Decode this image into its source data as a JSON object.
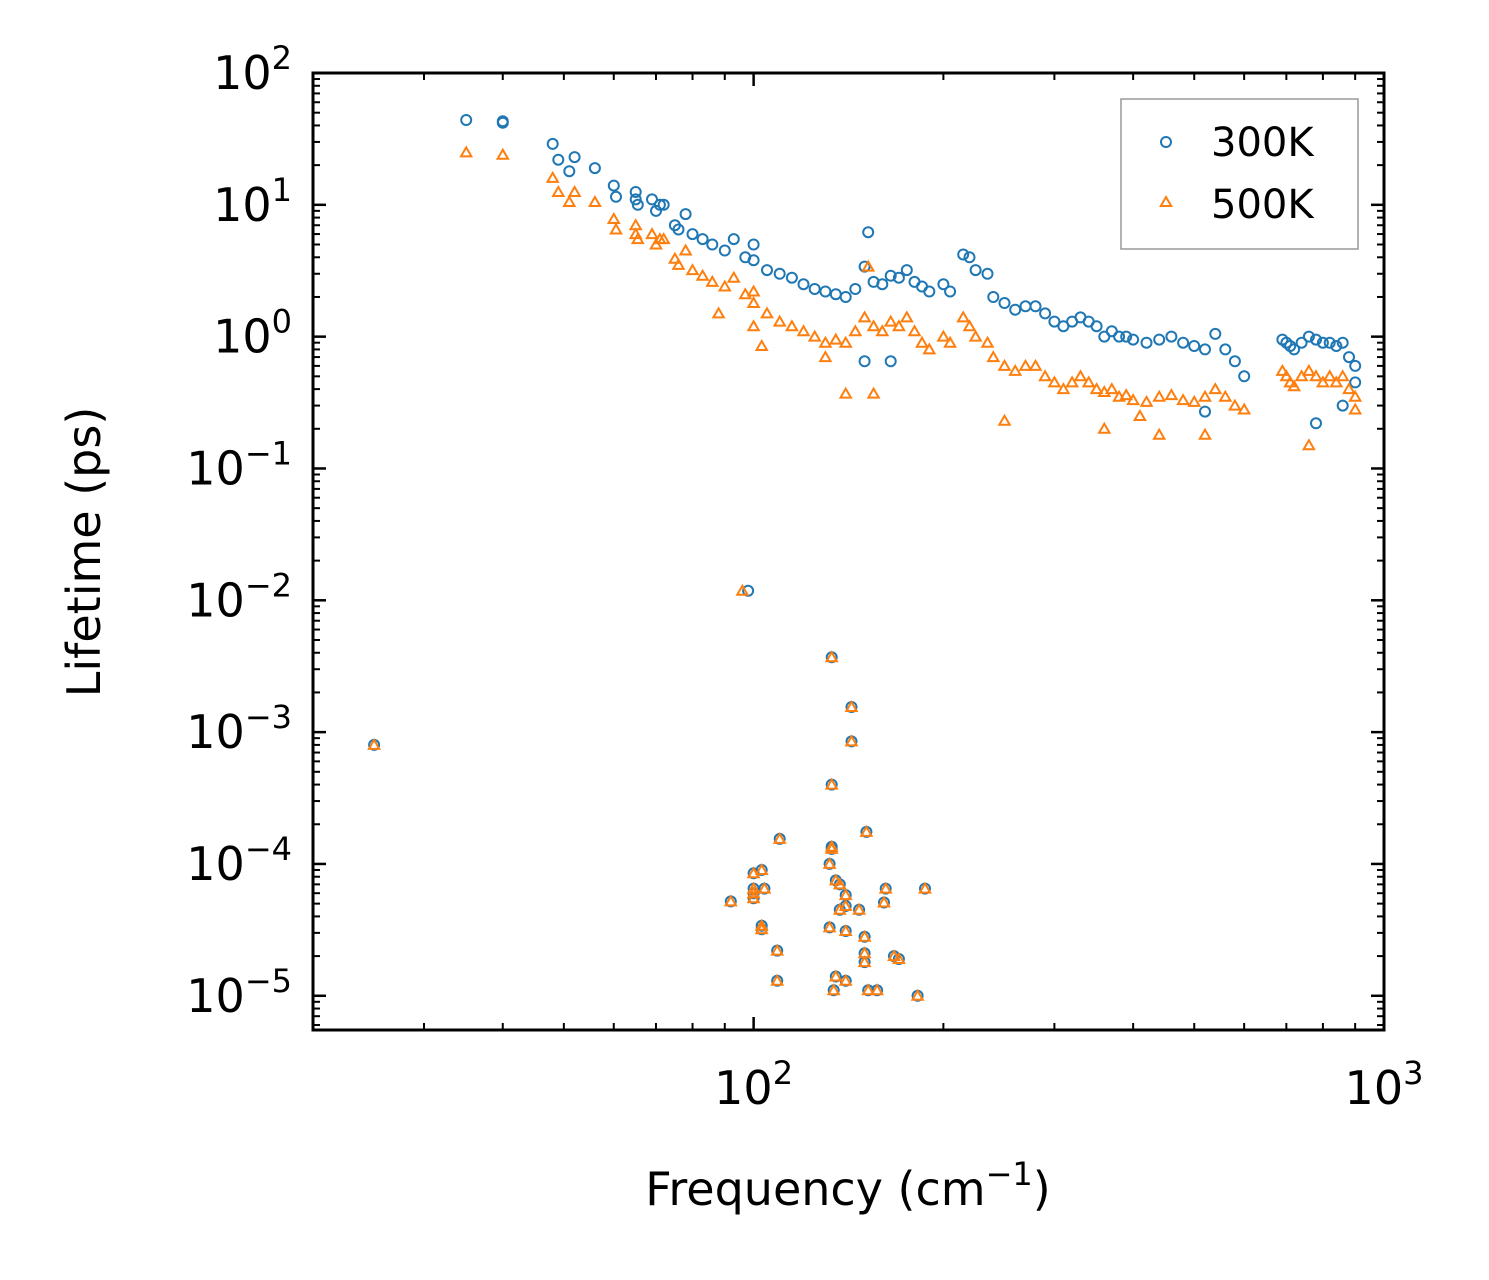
{
  "chart_data": {
    "type": "scatter",
    "xscale": "log",
    "yscale": "log",
    "xlim": [
      20,
      1000
    ],
    "ylim": [
      5.5e-06,
      100
    ],
    "xlabel": "Frequency (cm",
    "xlabel_sup": "−1",
    "xlabel_end": ")",
    "ylabel": "Lifetime (ps)",
    "legend_position": "top-right",
    "x_ticks": [
      {
        "value": 100,
        "base": "10",
        "exp": "2"
      },
      {
        "value": 1000,
        "base": "10",
        "exp": "3"
      }
    ],
    "y_ticks": [
      {
        "value": 100,
        "base": "10",
        "exp": "2"
      },
      {
        "value": 10,
        "base": "10",
        "exp": "1"
      },
      {
        "value": 1,
        "base": "10",
        "exp": "0"
      },
      {
        "value": 0.1,
        "base": "10",
        "exp": "−1"
      },
      {
        "value": 0.01,
        "base": "10",
        "exp": "−2"
      },
      {
        "value": 0.001,
        "base": "10",
        "exp": "−3"
      },
      {
        "value": 0.0001,
        "base": "10",
        "exp": "−4"
      },
      {
        "value": 1e-05,
        "base": "10",
        "exp": "−5"
      }
    ],
    "series": [
      {
        "name": "300K",
        "marker": "circle",
        "color": "#1f77b4",
        "points": [
          [
            35,
            44
          ],
          [
            40,
            43
          ],
          [
            40,
            42
          ],
          [
            48,
            29
          ],
          [
            49,
            22
          ],
          [
            51,
            18
          ],
          [
            52,
            23
          ],
          [
            56,
            19
          ],
          [
            60,
            14
          ],
          [
            60.5,
            11.5
          ],
          [
            65,
            12.5
          ],
          [
            65,
            11
          ],
          [
            65.5,
            10
          ],
          [
            69,
            11
          ],
          [
            70,
            9
          ],
          [
            71,
            10
          ],
          [
            72,
            10
          ],
          [
            75,
            7
          ],
          [
            76,
            6.5
          ],
          [
            78,
            8.5
          ],
          [
            80,
            6
          ],
          [
            83,
            5.5
          ],
          [
            86,
            5
          ],
          [
            90,
            4.5
          ],
          [
            93,
            5.5
          ],
          [
            97,
            4
          ],
          [
            100,
            5
          ],
          [
            100,
            3.8
          ],
          [
            105,
            3.2
          ],
          [
            110,
            3
          ],
          [
            115,
            2.8
          ],
          [
            120,
            2.5
          ],
          [
            125,
            2.3
          ],
          [
            130,
            2.2
          ],
          [
            135,
            2.1
          ],
          [
            140,
            2.0
          ],
          [
            145,
            2.3
          ],
          [
            150,
            3.4
          ],
          [
            152,
            6.2
          ],
          [
            155,
            2.6
          ],
          [
            160,
            2.5
          ],
          [
            165,
            2.9
          ],
          [
            170,
            2.8
          ],
          [
            175,
            3.2
          ],
          [
            180,
            2.6
          ],
          [
            185,
            2.4
          ],
          [
            190,
            2.2
          ],
          [
            200,
            2.5
          ],
          [
            205,
            2.2
          ],
          [
            215,
            4.2
          ],
          [
            220,
            4.0
          ],
          [
            225,
            3.2
          ],
          [
            235,
            3.0
          ],
          [
            240,
            2.0
          ],
          [
            250,
            1.8
          ],
          [
            260,
            1.6
          ],
          [
            270,
            1.7
          ],
          [
            280,
            1.7
          ],
          [
            290,
            1.5
          ],
          [
            300,
            1.3
          ],
          [
            310,
            1.2
          ],
          [
            320,
            1.3
          ],
          [
            330,
            1.4
          ],
          [
            340,
            1.3
          ],
          [
            350,
            1.2
          ],
          [
            360,
            1.0
          ],
          [
            370,
            1.1
          ],
          [
            380,
            1.0
          ],
          [
            390,
            1.0
          ],
          [
            400,
            0.95
          ],
          [
            420,
            0.9
          ],
          [
            440,
            0.95
          ],
          [
            460,
            1.0
          ],
          [
            480,
            0.9
          ],
          [
            500,
            0.85
          ],
          [
            520,
            0.8
          ],
          [
            540,
            1.05
          ],
          [
            560,
            0.8
          ],
          [
            580,
            0.65
          ],
          [
            600,
            0.5
          ],
          [
            520,
            0.27
          ],
          [
            690,
            0.95
          ],
          [
            700,
            0.9
          ],
          [
            710,
            0.85
          ],
          [
            720,
            0.8
          ],
          [
            740,
            0.9
          ],
          [
            760,
            1.0
          ],
          [
            780,
            0.95
          ],
          [
            800,
            0.9
          ],
          [
            820,
            0.9
          ],
          [
            840,
            0.85
          ],
          [
            860,
            0.9
          ],
          [
            880,
            0.7
          ],
          [
            900,
            0.6
          ],
          [
            900,
            0.45
          ],
          [
            860,
            0.3
          ],
          [
            780,
            0.22
          ],
          [
            150,
            0.65
          ],
          [
            165,
            0.65
          ],
          [
            98,
            0.0118
          ],
          [
            25,
            0.0008
          ],
          [
            133,
            0.0037
          ],
          [
            143,
            0.00155
          ],
          [
            143,
            0.00085
          ],
          [
            133,
            0.0004
          ],
          [
            110,
            0.000155
          ],
          [
            151,
            0.000175
          ],
          [
            133,
            0.000135
          ],
          [
            133,
            0.00013
          ],
          [
            132,
            0.0001
          ],
          [
            103,
            9e-05
          ],
          [
            100,
            8.5e-05
          ],
          [
            135,
            7.5e-05
          ],
          [
            137,
            7e-05
          ],
          [
            100,
            6.5e-05
          ],
          [
            100,
            6e-05
          ],
          [
            104,
            6.5e-05
          ],
          [
            162,
            6.5e-05
          ],
          [
            187,
            6.5e-05
          ],
          [
            140,
            5.8e-05
          ],
          [
            92,
            5.2e-05
          ],
          [
            100,
            5.5e-05
          ],
          [
            161,
            5.1e-05
          ],
          [
            137,
            4.5e-05
          ],
          [
            140,
            4.8e-05
          ],
          [
            147,
            4.5e-05
          ],
          [
            103,
            3.4e-05
          ],
          [
            103,
            3.2e-05
          ],
          [
            132,
            3.3e-05
          ],
          [
            140,
            3.1e-05
          ],
          [
            150,
            2.8e-05
          ],
          [
            109,
            2.2e-05
          ],
          [
            150,
            2.1e-05
          ],
          [
            150,
            1.8e-05
          ],
          [
            167,
            2e-05
          ],
          [
            170,
            1.9e-05
          ],
          [
            109,
            1.3e-05
          ],
          [
            135,
            1.4e-05
          ],
          [
            140,
            1.3e-05
          ],
          [
            134,
            1.1e-05
          ],
          [
            152,
            1.1e-05
          ],
          [
            157,
            1.1e-05
          ],
          [
            182,
            1e-05
          ]
        ]
      },
      {
        "name": "500K",
        "marker": "triangle",
        "color": "#ff7f0e",
        "points": [
          [
            35,
            25
          ],
          [
            40,
            24
          ],
          [
            48,
            16
          ],
          [
            49,
            12.5
          ],
          [
            51,
            10.5
          ],
          [
            52,
            12.5
          ],
          [
            56,
            10.5
          ],
          [
            60,
            7.8
          ],
          [
            60.5,
            6.5
          ],
          [
            65,
            7
          ],
          [
            65,
            6
          ],
          [
            65.5,
            5.5
          ],
          [
            69,
            6
          ],
          [
            70,
            5
          ],
          [
            71,
            5.5
          ],
          [
            72,
            5.5
          ],
          [
            75,
            3.9
          ],
          [
            76,
            3.5
          ],
          [
            78,
            4.5
          ],
          [
            80,
            3.2
          ],
          [
            83,
            2.9
          ],
          [
            86,
            2.6
          ],
          [
            88,
            1.5
          ],
          [
            90,
            2.4
          ],
          [
            93,
            2.8
          ],
          [
            97,
            2.1
          ],
          [
            100,
            2.2
          ],
          [
            100,
            1.8
          ],
          [
            100,
            1.2
          ],
          [
            103,
            0.85
          ],
          [
            105,
            1.5
          ],
          [
            110,
            1.3
          ],
          [
            115,
            1.2
          ],
          [
            120,
            1.1
          ],
          [
            125,
            1.0
          ],
          [
            130,
            0.9
          ],
          [
            135,
            0.95
          ],
          [
            140,
            0.9
          ],
          [
            145,
            1.1
          ],
          [
            150,
            1.4
          ],
          [
            152,
            3.4
          ],
          [
            155,
            1.2
          ],
          [
            160,
            1.1
          ],
          [
            165,
            1.3
          ],
          [
            170,
            1.2
          ],
          [
            175,
            1.4
          ],
          [
            180,
            1.1
          ],
          [
            185,
            0.9
          ],
          [
            190,
            0.8
          ],
          [
            200,
            1.0
          ],
          [
            205,
            0.9
          ],
          [
            215,
            1.4
          ],
          [
            220,
            1.2
          ],
          [
            225,
            1.0
          ],
          [
            235,
            0.9
          ],
          [
            240,
            0.7
          ],
          [
            250,
            0.6
          ],
          [
            260,
            0.55
          ],
          [
            270,
            0.6
          ],
          [
            280,
            0.6
          ],
          [
            290,
            0.5
          ],
          [
            300,
            0.45
          ],
          [
            310,
            0.4
          ],
          [
            320,
            0.45
          ],
          [
            330,
            0.5
          ],
          [
            340,
            0.45
          ],
          [
            350,
            0.4
          ],
          [
            360,
            0.38
          ],
          [
            370,
            0.4
          ],
          [
            380,
            0.35
          ],
          [
            390,
            0.36
          ],
          [
            400,
            0.33
          ],
          [
            420,
            0.32
          ],
          [
            440,
            0.35
          ],
          [
            460,
            0.36
          ],
          [
            480,
            0.33
          ],
          [
            500,
            0.32
          ],
          [
            520,
            0.35
          ],
          [
            540,
            0.4
          ],
          [
            560,
            0.35
          ],
          [
            580,
            0.3
          ],
          [
            600,
            0.28
          ],
          [
            360,
            0.2
          ],
          [
            410,
            0.25
          ],
          [
            440,
            0.18
          ],
          [
            520,
            0.18
          ],
          [
            690,
            0.55
          ],
          [
            700,
            0.5
          ],
          [
            710,
            0.45
          ],
          [
            720,
            0.42
          ],
          [
            740,
            0.5
          ],
          [
            760,
            0.55
          ],
          [
            780,
            0.5
          ],
          [
            800,
            0.45
          ],
          [
            820,
            0.5
          ],
          [
            840,
            0.45
          ],
          [
            860,
            0.5
          ],
          [
            880,
            0.4
          ],
          [
            900,
            0.35
          ],
          [
            900,
            0.28
          ],
          [
            760,
            0.15
          ],
          [
            250,
            0.23
          ],
          [
            140,
            0.37
          ],
          [
            155,
            0.37
          ],
          [
            130,
            0.7
          ],
          [
            96,
            0.0118
          ],
          [
            25,
            0.0008
          ],
          [
            133,
            0.0037
          ],
          [
            143,
            0.00155
          ],
          [
            143,
            0.00085
          ],
          [
            133,
            0.0004
          ],
          [
            110,
            0.000155
          ],
          [
            151,
            0.000175
          ],
          [
            133,
            0.000135
          ],
          [
            133,
            0.00013
          ],
          [
            132,
            0.0001
          ],
          [
            103,
            9e-05
          ],
          [
            100,
            8.5e-05
          ],
          [
            135,
            7.5e-05
          ],
          [
            137,
            7e-05
          ],
          [
            100,
            6.5e-05
          ],
          [
            100,
            6e-05
          ],
          [
            104,
            6.5e-05
          ],
          [
            162,
            6.5e-05
          ],
          [
            187,
            6.5e-05
          ],
          [
            140,
            5.8e-05
          ],
          [
            92,
            5.2e-05
          ],
          [
            100,
            5.5e-05
          ],
          [
            161,
            5.1e-05
          ],
          [
            137,
            4.5e-05
          ],
          [
            140,
            4.8e-05
          ],
          [
            147,
            4.5e-05
          ],
          [
            103,
            3.4e-05
          ],
          [
            103,
            3.2e-05
          ],
          [
            132,
            3.3e-05
          ],
          [
            140,
            3.1e-05
          ],
          [
            150,
            2.8e-05
          ],
          [
            109,
            2.2e-05
          ],
          [
            150,
            2.1e-05
          ],
          [
            150,
            1.8e-05
          ],
          [
            167,
            2e-05
          ],
          [
            170,
            1.9e-05
          ],
          [
            109,
            1.3e-05
          ],
          [
            135,
            1.4e-05
          ],
          [
            140,
            1.3e-05
          ],
          [
            134,
            1.1e-05
          ],
          [
            152,
            1.1e-05
          ],
          [
            157,
            1.1e-05
          ],
          [
            182,
            1e-05
          ]
        ]
      }
    ]
  }
}
